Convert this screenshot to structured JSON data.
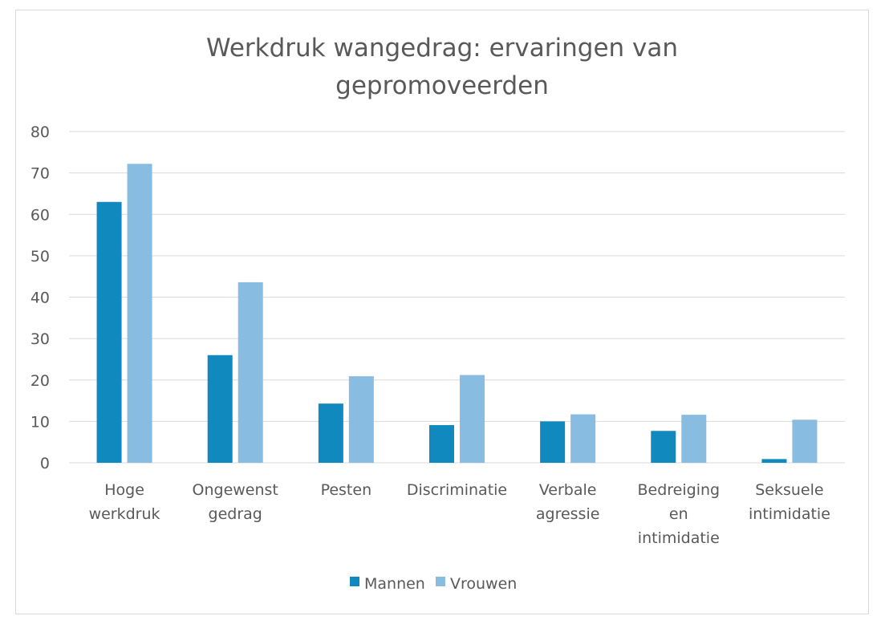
{
  "chart_data": {
    "type": "bar",
    "title_lines": [
      "Werkdruk wangedrag: ervaringen van",
      "gepromoveerden"
    ],
    "categories": [
      [
        "Hoge",
        "werkdruk"
      ],
      [
        "Ongewenst",
        "gedrag"
      ],
      [
        "Pesten"
      ],
      [
        "Discriminatie"
      ],
      [
        "Verbale",
        "agressie"
      ],
      [
        "Bedreiging",
        "en",
        "intimidatie"
      ],
      [
        "Seksuele",
        "intimidatie"
      ]
    ],
    "series": [
      {
        "name": "Mannen",
        "color": "#1089bf",
        "values": [
          63,
          26,
          14.3,
          9.1,
          10,
          7.7,
          0.9
        ]
      },
      {
        "name": "Vrouwen",
        "color": "#88bce0",
        "values": [
          72.2,
          43.6,
          20.9,
          21.2,
          11.7,
          11.6,
          10.4
        ]
      }
    ],
    "ylim": [
      0,
      80
    ],
    "yticks": [
      "0",
      "10",
      "20",
      "30",
      "40",
      "50",
      "60",
      "70",
      "80"
    ],
    "grid": true,
    "legend_position": "bottom"
  }
}
